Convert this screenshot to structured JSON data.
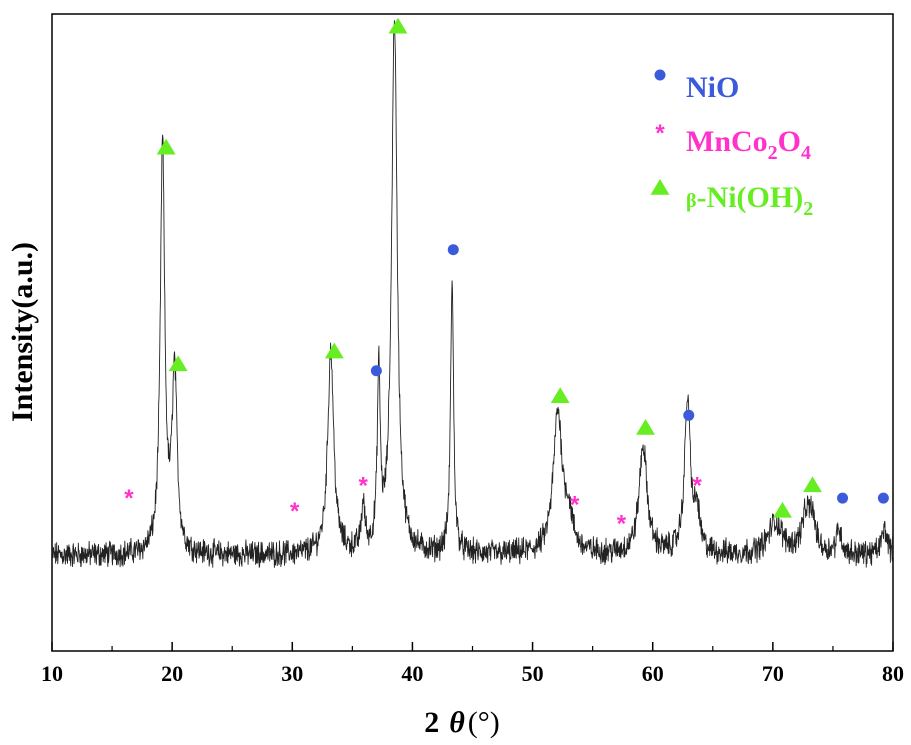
{
  "chart_data": {
    "type": "line",
    "xlabel": {
      "prefix": "2",
      "symbol": "θ",
      "unit": "(°)"
    },
    "ylabel": "Intensity(a.u.)",
    "xlim": [
      10,
      80
    ],
    "ylim": [
      0,
      100
    ],
    "xticks": [
      10,
      20,
      30,
      40,
      50,
      60,
      70,
      80
    ],
    "yticks_shown": false,
    "baseline": 15,
    "noise": 1.6,
    "peaks": [
      {
        "x": 19.2,
        "h": 64,
        "w": 0.22
      },
      {
        "x": 20.2,
        "h": 28,
        "w": 0.25
      },
      {
        "x": 33.2,
        "h": 32,
        "w": 0.3
      },
      {
        "x": 35.9,
        "h": 7,
        "w": 0.18
      },
      {
        "x": 37.2,
        "h": 27,
        "w": 0.15
      },
      {
        "x": 38.5,
        "h": 84,
        "w": 0.28
      },
      {
        "x": 43.3,
        "h": 43,
        "w": 0.15
      },
      {
        "x": 52.1,
        "h": 22,
        "w": 0.45
      },
      {
        "x": 53.0,
        "h": 5,
        "w": 0.4
      },
      {
        "x": 59.2,
        "h": 17,
        "w": 0.4
      },
      {
        "x": 62.9,
        "h": 24,
        "w": 0.3
      },
      {
        "x": 63.7,
        "h": 6,
        "w": 0.25
      },
      {
        "x": 70.2,
        "h": 5,
        "w": 0.7
      },
      {
        "x": 72.8,
        "h": 6,
        "w": 0.5
      },
      {
        "x": 73.3,
        "h": 4,
        "w": 0.3
      },
      {
        "x": 75.5,
        "h": 4,
        "w": 0.25
      },
      {
        "x": 79.3,
        "h": 4,
        "w": 0.3
      }
    ],
    "series": [
      {
        "name": "NiO",
        "marker": "circle",
        "color": "#3b5bdb",
        "points": [
          {
            "x": 37.0,
            "y": 44
          },
          {
            "x": 43.4,
            "y": 63
          },
          {
            "x": 63.0,
            "y": 37
          },
          {
            "x": 75.8,
            "y": 24
          },
          {
            "x": 79.2,
            "y": 24
          }
        ]
      },
      {
        "name": "MnCo2O4",
        "marker": "asterisk",
        "color": "#ff33cc",
        "points": [
          {
            "x": 16.4,
            "y": 24
          },
          {
            "x": 30.2,
            "y": 22
          },
          {
            "x": 35.9,
            "y": 26
          },
          {
            "x": 53.5,
            "y": 23
          },
          {
            "x": 57.4,
            "y": 20
          },
          {
            "x": 63.7,
            "y": 26
          }
        ]
      },
      {
        "name": "β-Ni(OH)2",
        "marker": "triangle",
        "color": "#66ee22",
        "points": [
          {
            "x": 19.5,
            "y": 79
          },
          {
            "x": 20.5,
            "y": 45
          },
          {
            "x": 33.5,
            "y": 47
          },
          {
            "x": 38.8,
            "y": 98
          },
          {
            "x": 52.3,
            "y": 40
          },
          {
            "x": 59.4,
            "y": 35
          },
          {
            "x": 70.8,
            "y": 22
          },
          {
            "x": 73.3,
            "y": 26
          }
        ]
      }
    ],
    "legend": {
      "position": "top-right",
      "entries": [
        {
          "marker": "circle",
          "color": "#3b5bdb",
          "label": "NiO"
        },
        {
          "marker": "asterisk",
          "color": "#ff33cc",
          "label_parts": [
            "MnCo",
            "2",
            "O",
            "4"
          ]
        },
        {
          "marker": "triangle",
          "color": "#66ee22",
          "label_parts": [
            "β",
            "-Ni(OH)",
            "2"
          ]
        }
      ]
    }
  }
}
